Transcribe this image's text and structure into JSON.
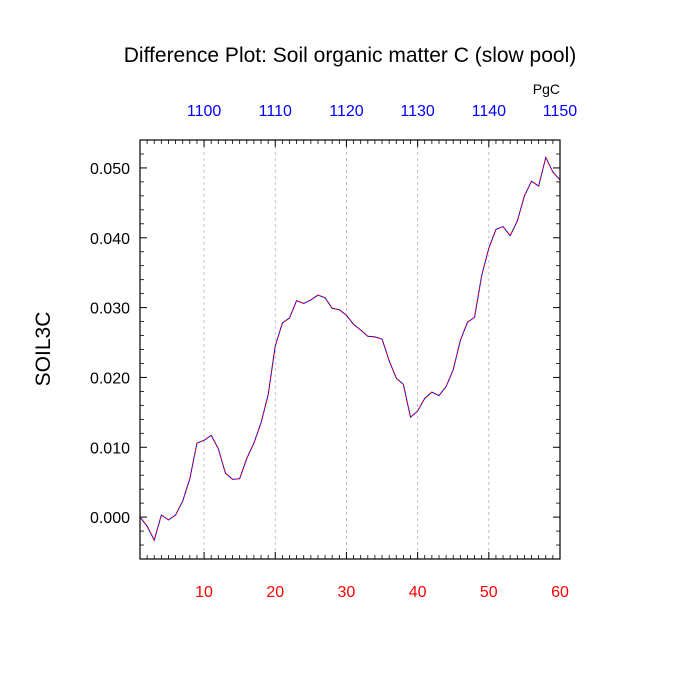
{
  "chart_data": {
    "type": "line",
    "title": "Difference Plot: Soil organic matter C (slow pool)",
    "units_label": "PgC",
    "ylabel": "SOIL3C",
    "xlabel": "",
    "xlim": [
      1,
      60
    ],
    "ylim": [
      -0.006,
      0.054
    ],
    "grid": "vertical dashed at major bottom ticks",
    "x_bottom_ticks": [
      "10",
      "20",
      "30",
      "40",
      "50",
      "60"
    ],
    "x_top_ticks": [
      "1100",
      "1110",
      "1120",
      "1130",
      "1140",
      "1150"
    ],
    "y_ticks": [
      "0.000",
      "0.010",
      "0.020",
      "0.030",
      "0.040",
      "0.050"
    ],
    "colors": {
      "bottom_tick_labels": "#ff0000",
      "top_tick_labels": "#0000ff",
      "series_line": "#0000ff",
      "series_dash": "#ff0000",
      "grid": "#b4b4b4"
    },
    "series": [
      {
        "x": [
          1,
          2,
          3,
          4,
          5,
          6,
          7,
          8,
          9,
          10,
          11,
          12,
          13,
          14,
          15,
          16,
          17,
          18,
          19,
          20,
          21,
          22,
          23,
          24,
          25,
          26,
          27,
          28,
          29,
          30,
          31,
          32,
          33,
          34,
          35,
          36,
          37,
          38,
          39,
          40,
          41,
          42,
          43,
          44,
          45,
          46,
          47,
          48,
          49,
          50,
          51,
          52,
          53,
          54,
          55,
          56,
          57,
          58,
          59,
          60
        ],
        "values": [
          0.0,
          -0.0013,
          -0.0033,
          0.0003,
          -0.0004,
          0.0003,
          0.0023,
          0.0055,
          0.0106,
          0.011,
          0.0117,
          0.0098,
          0.0063,
          0.0054,
          0.0055,
          0.0084,
          0.0106,
          0.0135,
          0.0175,
          0.0245,
          0.0278,
          0.0285,
          0.031,
          0.0306,
          0.0311,
          0.0318,
          0.0314,
          0.0299,
          0.0297,
          0.0289,
          0.0276,
          0.0268,
          0.0259,
          0.0258,
          0.0255,
          0.0224,
          0.0199,
          0.019,
          0.0143,
          0.0152,
          0.017,
          0.0179,
          0.0174,
          0.0187,
          0.0211,
          0.0253,
          0.0279,
          0.0286,
          0.0346,
          0.0385,
          0.0412,
          0.0416,
          0.0403,
          0.0424,
          0.046,
          0.0481,
          0.0474,
          0.0515,
          0.0494,
          0.0483
        ]
      }
    ]
  }
}
